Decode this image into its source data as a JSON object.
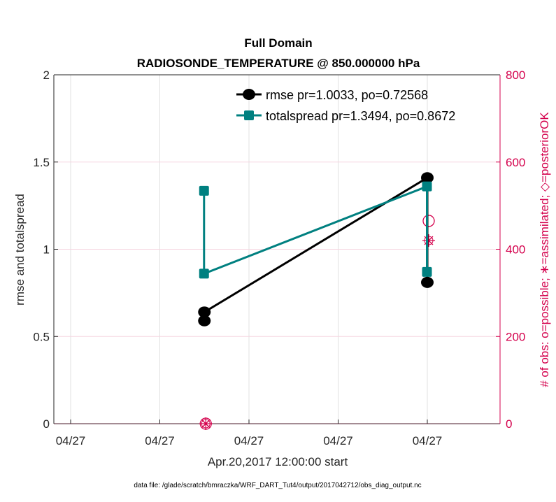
{
  "chart_data": {
    "type": "line",
    "title": [
      "Full Domain",
      "RADIOSONDE_TEMPERATURE @ 850.000000 hPa"
    ],
    "xlabel": "Apr.20,2017 12:00:00 start",
    "ylabel": "rmse and totalspread",
    "y2label": "# of obs: o=possible; ∗=assimilated; ◇=posteriorOK",
    "footer": "data file: /glade/scratch/bmraczka/WRF_DART_Tut4/output/2017042712/obs_diag_output.nc",
    "xlim": [
      0,
      4.8
    ],
    "x_ticks": [
      0,
      1,
      2,
      3,
      4
    ],
    "x_tick_labels": [
      "04/27",
      "04/27",
      "04/27",
      "04/27",
      "04/27"
    ],
    "ylim": [
      0,
      2
    ],
    "y_ticks": [
      0,
      0.5,
      1,
      1.5,
      2
    ],
    "y_tick_labels": [
      "0",
      "0.5",
      "1",
      "1.5",
      "2"
    ],
    "y2lim": [
      0,
      800
    ],
    "y2_ticks": [
      0,
      200,
      400,
      600,
      800
    ],
    "y2_tick_labels": [
      "0",
      "200",
      "400",
      "600",
      "800"
    ],
    "grid": true,
    "legend_position": "top-right",
    "series": [
      {
        "name": "rmse pr=1.0033, po=0.72568",
        "color": "#000000",
        "marker": "circle",
        "x": [
          1.5,
          1.5,
          4,
          4
        ],
        "values": [
          0.59,
          0.64,
          1.41,
          0.81
        ]
      },
      {
        "name": "totalspread pr=1.3494, po=0.8672",
        "color": "#008080",
        "marker": "square",
        "x": [
          1.5,
          1.5,
          4,
          4
        ],
        "values": [
          1.335,
          0.86,
          1.36,
          0.87
        ]
      }
    ],
    "obs_counts": {
      "color": "#d4004c",
      "x": [
        1.5,
        4
      ],
      "possible": [
        0,
        465
      ],
      "assimilated": [
        0,
        420
      ]
    }
  }
}
